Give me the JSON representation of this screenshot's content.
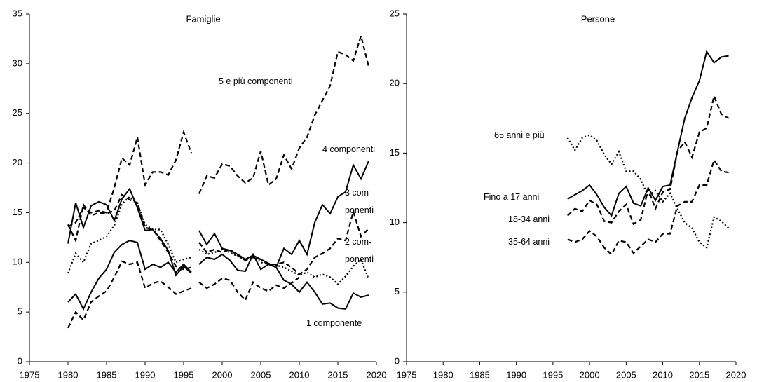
{
  "chart_data": [
    {
      "type": "line",
      "title": "Famiglie",
      "xlim": [
        1975,
        2020
      ],
      "xticks": [
        1975,
        1980,
        1985,
        1990,
        1995,
        2000,
        2005,
        2010,
        2015,
        2020
      ],
      "ylim": [
        0,
        35
      ],
      "yticks": [
        0,
        5,
        10,
        15,
        20,
        25,
        30,
        35
      ],
      "break_before": 1997,
      "x": [
        1980,
        1981,
        1982,
        1983,
        1984,
        1985,
        1986,
        1987,
        1988,
        1989,
        1990,
        1991,
        1992,
        1993,
        1994,
        1995,
        1996,
        1997,
        1998,
        1999,
        2000,
        2001,
        2002,
        2003,
        2004,
        2005,
        2006,
        2007,
        2008,
        2009,
        2010,
        2011,
        2012,
        2013,
        2014,
        2015,
        2016,
        2017,
        2018,
        2019
      ],
      "series": [
        {
          "name": "5 e più componenti",
          "color": "#000000",
          "dash": "dashed",
          "values": [
            13.6,
            14.0,
            15.5,
            15.0,
            15.2,
            15.0,
            17.5,
            20.5,
            19.8,
            22.6,
            17.8,
            19.1,
            19.1,
            18.8,
            20.3,
            23.1,
            21.0,
            16.9,
            18.7,
            18.5,
            19.9,
            19.7,
            18.7,
            18.0,
            18.5,
            21.2,
            17.8,
            18.4,
            20.8,
            19.4,
            21.5,
            22.6,
            24.8,
            26.3,
            27.8,
            31.2,
            30.9,
            30.3,
            32.8,
            29.7
          ]
        },
        {
          "name": "4 componenti",
          "color": "#000000",
          "dash": "solid",
          "values": [
            11.9,
            16.0,
            13.5,
            15.7,
            16.1,
            15.8,
            14.2,
            16.4,
            17.4,
            15.5,
            13.2,
            13.3,
            12.4,
            11.2,
            8.7,
            9.6,
            8.9,
            13.2,
            11.8,
            12.9,
            11.4,
            11.2,
            10.8,
            10.3,
            10.7,
            10.3,
            9.9,
            9.5,
            11.4,
            10.8,
            12.2,
            10.8,
            14.0,
            15.8,
            14.9,
            16.6,
            17.1,
            19.8,
            18.4,
            20.2
          ]
        },
        {
          "name": "3 com-\nponenti",
          "color": "#000000",
          "dash": "dashed",
          "values": [
            13.8,
            12.2,
            15.8,
            14.7,
            15.0,
            14.9,
            15.2,
            16.8,
            16.3,
            16.0,
            13.5,
            13.3,
            12.2,
            11.0,
            9.6,
            9.3,
            9.5,
            12.0,
            11.0,
            11.3,
            11.0,
            11.3,
            10.7,
            10.2,
            10.5,
            10.3,
            9.8,
            9.8,
            10.0,
            9.5,
            8.8,
            9.3,
            10.5,
            10.9,
            11.4,
            12.4,
            12.2,
            15.1,
            12.6,
            13.4
          ]
        },
        {
          "name": "2 com-\nponenti",
          "color": "#000000",
          "dash": "dotted",
          "values": [
            8.9,
            10.9,
            10.0,
            11.9,
            12.2,
            12.6,
            13.7,
            15.9,
            16.6,
            15.9,
            13.8,
            13.3,
            13.3,
            11.8,
            10.0,
            10.3,
            10.5,
            11.3,
            10.8,
            11.0,
            11.3,
            11.0,
            10.6,
            10.3,
            10.7,
            10.0,
            9.8,
            9.7,
            9.5,
            9.1,
            8.7,
            9.0,
            8.5,
            8.8,
            8.5,
            7.8,
            8.6,
            9.6,
            10.3,
            8.3
          ]
        },
        {
          "name": "1 componente",
          "color": "#000000",
          "dash": "solid",
          "values": [
            6.0,
            6.8,
            5.3,
            7.0,
            8.4,
            9.3,
            11.0,
            11.8,
            12.2,
            12.0,
            9.3,
            9.8,
            9.5,
            10.0,
            9.0,
            9.8,
            9.0,
            9.8,
            10.5,
            10.3,
            10.8,
            10.2,
            9.2,
            9.1,
            10.8,
            9.3,
            9.8,
            9.5,
            8.2,
            7.8,
            7.0,
            8.0,
            7.0,
            5.8,
            5.9,
            5.4,
            5.3,
            6.9,
            6.5,
            6.7
          ]
        },
        {
          "color": "#000000",
          "dash": "dashed",
          "values": [
            3.4,
            5.0,
            4.2,
            6.0,
            6.6,
            7.1,
            8.5,
            10.1,
            9.8,
            10.0,
            7.4,
            7.9,
            8.1,
            7.5,
            6.8,
            7.1,
            7.4,
            8.0,
            7.4,
            7.8,
            8.4,
            8.2,
            7.0,
            6.2,
            8.0,
            7.4,
            7.1,
            7.7,
            7.4,
            7.9,
            8.5,
            null,
            null,
            null,
            null,
            null,
            null,
            null,
            null,
            null
          ]
        }
      ]
    },
    {
      "type": "line",
      "title": "Persone",
      "xlim": [
        1975,
        2020
      ],
      "xticks": [
        1975,
        1980,
        1985,
        1990,
        1995,
        2000,
        2005,
        2010,
        2015,
        2020
      ],
      "ylim": [
        0,
        25
      ],
      "yticks": [
        0,
        5,
        10,
        15,
        20,
        25
      ],
      "x": [
        1997,
        1998,
        1999,
        2000,
        2001,
        2002,
        2003,
        2004,
        2005,
        2006,
        2007,
        2008,
        2009,
        2010,
        2011,
        2012,
        2013,
        2014,
        2015,
        2016,
        2017,
        2018,
        2019
      ],
      "series": [
        {
          "name": "65 anni e più",
          "color": "#000000",
          "dash": "dotted",
          "values": [
            16.1,
            15.2,
            16.1,
            16.3,
            15.9,
            14.9,
            14.2,
            15.1,
            13.7,
            13.7,
            13.1,
            11.9,
            12.3,
            11.5,
            12.1,
            11.0,
            10.0,
            9.6,
            8.6,
            8.2,
            10.4,
            10.1,
            9.6
          ]
        },
        {
          "name": "Fino a 17 anni",
          "color": "#000000",
          "dash": "solid",
          "values": [
            11.7,
            12.0,
            12.3,
            12.7,
            12.0,
            11.1,
            10.5,
            12.1,
            12.6,
            11.4,
            11.2,
            12.5,
            11.6,
            12.6,
            12.7,
            15.1,
            17.5,
            19.0,
            20.2,
            22.3,
            21.5,
            21.9,
            22.0
          ]
        },
        {
          "name": "18-34 anni",
          "color": "#000000",
          "dash": "dashed",
          "values": [
            10.5,
            11.0,
            10.8,
            11.6,
            11.3,
            10.1,
            10.0,
            10.8,
            11.3,
            9.9,
            10.2,
            12.4,
            11.0,
            12.2,
            12.4,
            15.1,
            15.8,
            14.7,
            16.5,
            16.8,
            19.1,
            17.8,
            17.5
          ]
        },
        {
          "name": "35-64 anni",
          "color": "#000000",
          "dash": "dashed",
          "values": [
            8.8,
            8.6,
            8.8,
            9.4,
            9.0,
            8.2,
            7.7,
            8.7,
            8.6,
            7.8,
            8.3,
            8.8,
            8.6,
            9.2,
            9.2,
            11.2,
            11.5,
            11.5,
            12.7,
            12.7,
            14.5,
            13.7,
            13.6
          ]
        }
      ]
    }
  ]
}
